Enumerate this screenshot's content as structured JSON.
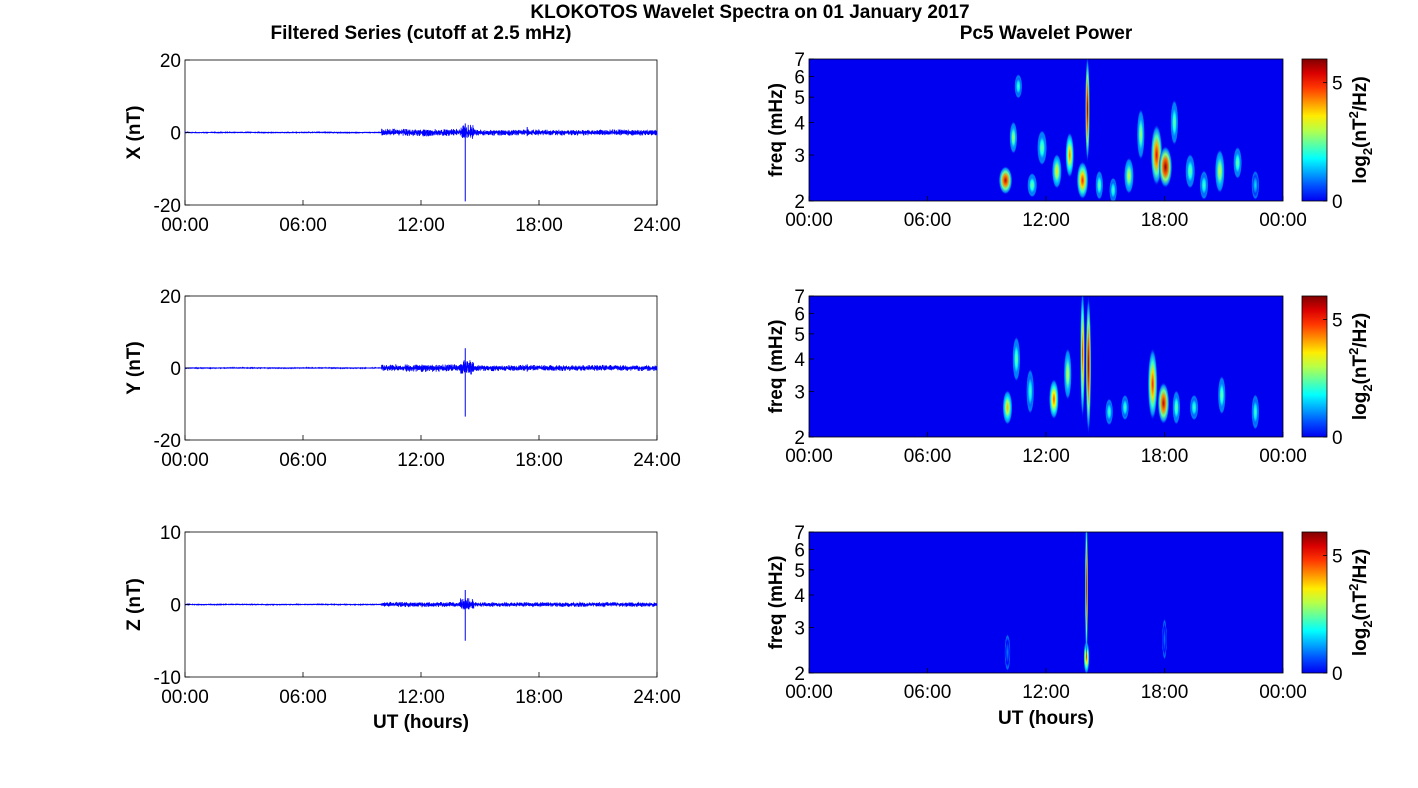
{
  "figure_title": "KLOKOTOS Wavelet Spectra on 01 January 2017",
  "left_column_title": "Filtered Series (cutoff at 2.5 mHz)",
  "right_column_title": "Pc5 Wavelet Power",
  "x_label": "UT (hours)",
  "colors": {
    "series_line": "#0000ff",
    "axes": "#000000",
    "colormap": "jet"
  },
  "chart_data": [
    {
      "type": "line",
      "component": "X",
      "ylabel": "X (nT)",
      "ylim": [
        -20,
        20
      ],
      "yticks": [
        "20",
        "0",
        "-20"
      ],
      "xlim": [
        0,
        24
      ],
      "xticks": [
        "00:00",
        "06:00",
        "12:00",
        "18:00",
        "24:00"
      ],
      "xlabel": "",
      "x_unit": "hours UT",
      "series": [
        {
          "activity_segments": [
            {
              "start": 0,
              "end": 10.0,
              "amplitude": 0.1
            },
            {
              "start": 10.0,
              "end": 14.0,
              "amplitude": 1.0
            },
            {
              "start": 14.0,
              "end": 14.7,
              "amplitude": 2.0
            },
            {
              "start": 14.7,
              "end": 24.0,
              "amplitude": 0.8
            }
          ],
          "spikes": [
            {
              "x": 14.25,
              "min": -19,
              "max": 2.5
            },
            {
              "x": 17.4,
              "min": -1.0,
              "max": 1.5
            }
          ]
        }
      ]
    },
    {
      "type": "line",
      "component": "Y",
      "ylabel": "Y (nT)",
      "ylim": [
        -20,
        20
      ],
      "yticks": [
        "20",
        "0",
        "-20"
      ],
      "xlim": [
        0,
        24
      ],
      "xticks": [
        "00:00",
        "06:00",
        "12:00",
        "18:00",
        "24:00"
      ],
      "xlabel": "",
      "x_unit": "hours UT",
      "series": [
        {
          "activity_segments": [
            {
              "start": 0,
              "end": 10.0,
              "amplitude": 0.1
            },
            {
              "start": 10.0,
              "end": 14.0,
              "amplitude": 1.0
            },
            {
              "start": 14.0,
              "end": 14.7,
              "amplitude": 2.0
            },
            {
              "start": 14.7,
              "end": 24.0,
              "amplitude": 0.8
            }
          ],
          "spikes": [
            {
              "x": 14.25,
              "min": -13.5,
              "max": 5.5
            },
            {
              "x": 17.4,
              "min": -1.0,
              "max": 1.0
            }
          ]
        }
      ]
    },
    {
      "type": "line",
      "component": "Z",
      "ylabel": "Z (nT)",
      "ylim": [
        -10,
        10
      ],
      "yticks": [
        "10",
        "0",
        "-10"
      ],
      "xlim": [
        0,
        24
      ],
      "xticks": [
        "00:00",
        "06:00",
        "12:00",
        "18:00",
        "24:00"
      ],
      "xlabel": "UT (hours)",
      "x_unit": "hours UT",
      "series": [
        {
          "activity_segments": [
            {
              "start": 0,
              "end": 10.0,
              "amplitude": 0.05
            },
            {
              "start": 10.0,
              "end": 14.0,
              "amplitude": 0.35
            },
            {
              "start": 14.0,
              "end": 14.7,
              "amplitude": 0.8
            },
            {
              "start": 14.7,
              "end": 24.0,
              "amplitude": 0.3
            }
          ],
          "spikes": [
            {
              "x": 14.25,
              "min": -5.0,
              "max": 2.0
            }
          ]
        }
      ]
    },
    {
      "type": "heatmap",
      "component": "X",
      "ylabel": "freq (mHz)",
      "ylim": [
        2,
        7
      ],
      "y_scale": "log",
      "yticks": [
        "2",
        "3",
        "4",
        "5",
        "6",
        "7"
      ],
      "xlim": [
        0,
        24
      ],
      "xticks": [
        "00:00",
        "06:00",
        "12:00",
        "18:00",
        "00:00"
      ],
      "xlabel": "",
      "colorbar": {
        "label": "log2(nT^2/Hz)",
        "range": [
          0,
          6
        ],
        "ticks": [
          "5",
          "0"
        ],
        "colormap": "jet"
      },
      "blobs": [
        {
          "t": 9.95,
          "f": 2.4,
          "dt": 0.35,
          "df": 0.3,
          "power": 0.95
        },
        {
          "t": 10.35,
          "f": 3.5,
          "dt": 0.2,
          "df": 0.5,
          "power": 0.55
        },
        {
          "t": 10.6,
          "f": 5.5,
          "dt": 0.2,
          "df": 0.6,
          "power": 0.45
        },
        {
          "t": 11.3,
          "f": 2.3,
          "dt": 0.25,
          "df": 0.25,
          "power": 0.5
        },
        {
          "t": 11.8,
          "f": 3.2,
          "dt": 0.25,
          "df": 0.5,
          "power": 0.5
        },
        {
          "t": 12.55,
          "f": 2.6,
          "dt": 0.25,
          "df": 0.4,
          "power": 0.65
        },
        {
          "t": 13.2,
          "f": 3.0,
          "dt": 0.22,
          "df": 0.6,
          "power": 0.75
        },
        {
          "t": 13.85,
          "f": 2.4,
          "dt": 0.3,
          "df": 0.4,
          "power": 0.85
        },
        {
          "t": 14.1,
          "f": 4.5,
          "dt": 0.12,
          "df": 2.0,
          "power": 1.0
        },
        {
          "t": 14.7,
          "f": 2.3,
          "dt": 0.2,
          "df": 0.3,
          "power": 0.5
        },
        {
          "t": 15.4,
          "f": 2.2,
          "dt": 0.2,
          "df": 0.25,
          "power": 0.45
        },
        {
          "t": 16.2,
          "f": 2.5,
          "dt": 0.25,
          "df": 0.4,
          "power": 0.6
        },
        {
          "t": 16.8,
          "f": 3.6,
          "dt": 0.2,
          "df": 0.8,
          "power": 0.55
        },
        {
          "t": 17.6,
          "f": 3.0,
          "dt": 0.3,
          "df": 0.8,
          "power": 0.9
        },
        {
          "t": 18.05,
          "f": 2.7,
          "dt": 0.35,
          "df": 0.5,
          "power": 1.0
        },
        {
          "t": 18.5,
          "f": 4.0,
          "dt": 0.2,
          "df": 0.8,
          "power": 0.5
        },
        {
          "t": 19.3,
          "f": 2.6,
          "dt": 0.25,
          "df": 0.4,
          "power": 0.5
        },
        {
          "t": 20.0,
          "f": 2.3,
          "dt": 0.22,
          "df": 0.3,
          "power": 0.45
        },
        {
          "t": 20.8,
          "f": 2.6,
          "dt": 0.25,
          "df": 0.5,
          "power": 0.6
        },
        {
          "t": 21.7,
          "f": 2.8,
          "dt": 0.22,
          "df": 0.4,
          "power": 0.5
        },
        {
          "t": 22.6,
          "f": 2.3,
          "dt": 0.2,
          "df": 0.3,
          "power": 0.35
        }
      ]
    },
    {
      "type": "heatmap",
      "component": "Y",
      "ylabel": "freq (mHz)",
      "ylim": [
        2,
        7
      ],
      "y_scale": "log",
      "yticks": [
        "2",
        "3",
        "4",
        "5",
        "6",
        "7"
      ],
      "xlim": [
        0,
        24
      ],
      "xticks": [
        "00:00",
        "06:00",
        "12:00",
        "18:00",
        "00:00"
      ],
      "xlabel": "",
      "colorbar": {
        "label": "log2(nT^2/Hz)",
        "range": [
          0,
          6
        ],
        "ticks": [
          "5",
          "0"
        ],
        "colormap": "jet"
      },
      "blobs": [
        {
          "t": 10.05,
          "f": 2.6,
          "dt": 0.25,
          "df": 0.4,
          "power": 0.7
        },
        {
          "t": 10.5,
          "f": 4.0,
          "dt": 0.2,
          "df": 0.8,
          "power": 0.5
        },
        {
          "t": 11.2,
          "f": 3.0,
          "dt": 0.2,
          "df": 0.6,
          "power": 0.45
        },
        {
          "t": 12.4,
          "f": 2.8,
          "dt": 0.25,
          "df": 0.5,
          "power": 0.8
        },
        {
          "t": 13.1,
          "f": 3.5,
          "dt": 0.2,
          "df": 0.8,
          "power": 0.6
        },
        {
          "t": 13.85,
          "f": 4.2,
          "dt": 0.12,
          "df": 2.2,
          "power": 0.85
        },
        {
          "t": 14.15,
          "f": 3.8,
          "dt": 0.14,
          "df": 2.5,
          "power": 1.0
        },
        {
          "t": 15.2,
          "f": 2.5,
          "dt": 0.2,
          "df": 0.3,
          "power": 0.45
        },
        {
          "t": 16.0,
          "f": 2.6,
          "dt": 0.2,
          "df": 0.3,
          "power": 0.45
        },
        {
          "t": 17.4,
          "f": 3.2,
          "dt": 0.25,
          "df": 1.0,
          "power": 0.85
        },
        {
          "t": 17.95,
          "f": 2.7,
          "dt": 0.3,
          "df": 0.5,
          "power": 0.95
        },
        {
          "t": 18.6,
          "f": 2.6,
          "dt": 0.2,
          "df": 0.4,
          "power": 0.5
        },
        {
          "t": 19.5,
          "f": 2.6,
          "dt": 0.22,
          "df": 0.3,
          "power": 0.45
        },
        {
          "t": 20.9,
          "f": 2.9,
          "dt": 0.2,
          "df": 0.5,
          "power": 0.5
        },
        {
          "t": 22.6,
          "f": 2.5,
          "dt": 0.2,
          "df": 0.4,
          "power": 0.45
        }
      ]
    },
    {
      "type": "heatmap",
      "component": "Z",
      "ylabel": "freq (mHz)",
      "ylim": [
        2,
        7
      ],
      "y_scale": "log",
      "yticks": [
        "2",
        "3",
        "4",
        "5",
        "6",
        "7"
      ],
      "xlim": [
        0,
        24
      ],
      "xticks": [
        "00:00",
        "06:00",
        "12:00",
        "18:00",
        "00:00"
      ],
      "xlabel": "UT (hours)",
      "colorbar": {
        "label": "log2(nT^2/Hz)",
        "range": [
          0,
          6
        ],
        "ticks": [
          "5",
          "0"
        ],
        "colormap": "jet"
      },
      "blobs": [
        {
          "t": 10.05,
          "f": 2.4,
          "dt": 0.15,
          "df": 0.4,
          "power": 0.25
        },
        {
          "t": 14.05,
          "f": 2.3,
          "dt": 0.15,
          "df": 0.35,
          "power": 0.8
        },
        {
          "t": 14.05,
          "f": 4.3,
          "dt": 0.08,
          "df": 2.5,
          "power": 0.95
        },
        {
          "t": 18.0,
          "f": 2.7,
          "dt": 0.12,
          "df": 0.5,
          "power": 0.25
        }
      ]
    }
  ]
}
